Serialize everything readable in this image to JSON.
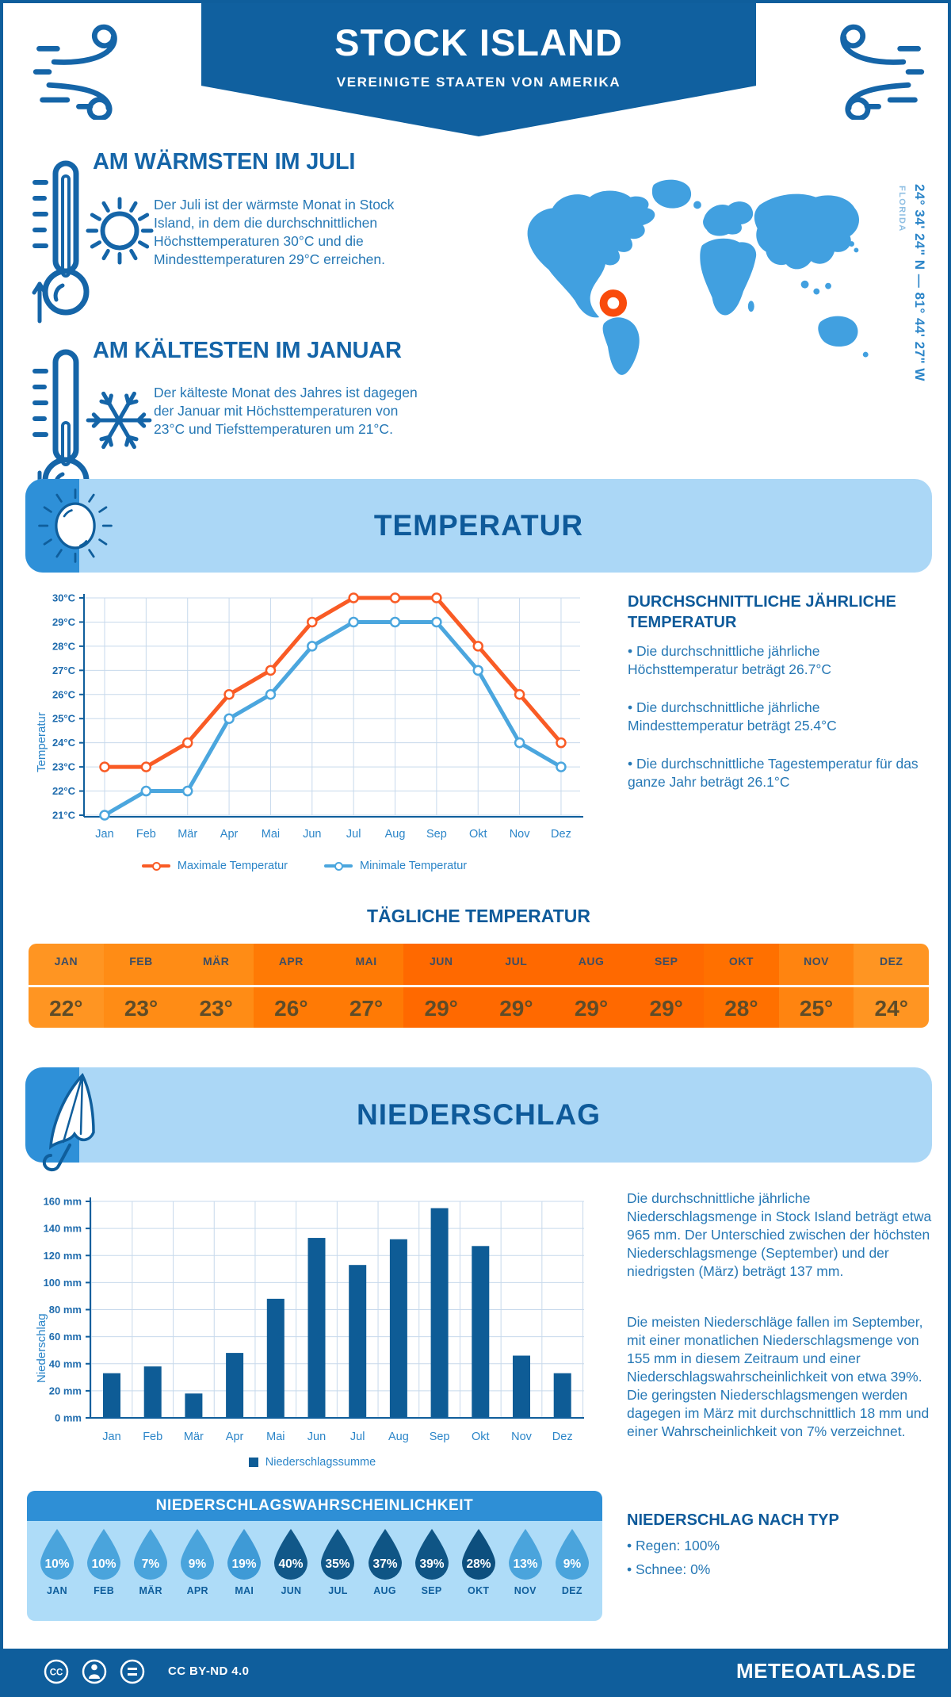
{
  "header": {
    "title": "STOCK ISLAND",
    "subtitle": "VEREINIGTE STAATEN VON AMERIKA"
  },
  "highlights": {
    "warm": {
      "title": "AM WÄRMSTEN IM JULI",
      "text": "Der Juli ist der wärmste Monat in Stock Island, in dem die durchschnittlichen Höchsttemperaturen 30°C und die Mindesttemperaturen 29°C erreichen."
    },
    "cold": {
      "title": "AM KÄLTESTEN IM JANUAR",
      "text": "Der kälteste Monat des Jahres ist dagegen der Januar mit Höchsttemperaturen von 23°C und Tiefsttemperaturen um 21°C."
    }
  },
  "map": {
    "coordinates": "24° 34' 24\" N — 81° 44' 27\" W",
    "region": "FLORIDA"
  },
  "temperature_section": {
    "title": "TEMPERATUR",
    "avg_heading": "DURCHSCHNITTLICHE JÄHRLICHE TEMPERATUR",
    "bullets": [
      "• Die durchschnittliche jährliche Höchsttemperatur beträgt 26.7°C",
      "• Die durchschnittliche jährliche Mindesttemperatur beträgt 25.4°C",
      "• Die durchschnittliche Tagestemperatur für das ganze Jahr beträgt 26.1°C"
    ]
  },
  "daily_table": {
    "title": "TÄGLICHE TEMPERATUR",
    "months": [
      "JAN",
      "FEB",
      "MÄR",
      "APR",
      "MAI",
      "JUN",
      "JUL",
      "AUG",
      "SEP",
      "OKT",
      "NOV",
      "DEZ"
    ],
    "values": [
      "22°",
      "23°",
      "23°",
      "26°",
      "27°",
      "29°",
      "29°",
      "29°",
      "29°",
      "28°",
      "25°",
      "24°"
    ],
    "cell_colors": [
      "#FF9522",
      "#FF8C15",
      "#FF8C15",
      "#FF7A05",
      "#FF7A05",
      "#FF6900",
      "#FF6900",
      "#FF6900",
      "#FF6900",
      "#FF7000",
      "#FF8410",
      "#FF9522"
    ]
  },
  "precipitation_section": {
    "title": "NIEDERSCHLAG",
    "para1": "Die durchschnittliche jährliche Niederschlagsmenge in Stock Island beträgt etwa 965 mm. Der Unterschied zwischen der höchsten Niederschlagsmenge (September) und der niedrigsten (März) beträgt 137 mm.",
    "para2": "Die meisten Niederschläge fallen im September, mit einer monatlichen Niederschlagsmenge von 155 mm in diesem Zeitraum und einer Niederschlagswahrscheinlichkeit von etwa 39%. Die geringsten Niederschlagsmengen werden dagegen im März mit durchschnittlich 18 mm und einer Wahrscheinlichkeit von 7% verzeichnet.",
    "type_heading": "NIEDERSCHLAG NACH TYP",
    "types": [
      "• Regen: 100%",
      "• Schnee: 0%"
    ]
  },
  "probability": {
    "title": "NIEDERSCHLAGSWAHRSCHEINLICHKEIT",
    "months": [
      "JAN",
      "FEB",
      "MÄR",
      "APR",
      "MAI",
      "JUN",
      "JUL",
      "AUG",
      "SEP",
      "OKT",
      "NOV",
      "DEZ"
    ],
    "values": [
      "10%",
      "10%",
      "7%",
      "9%",
      "19%",
      "40%",
      "35%",
      "37%",
      "39%",
      "28%",
      "13%",
      "9%"
    ],
    "drop_colors": [
      "#4AA4DC",
      "#4AA4DC",
      "#4AA4DC",
      "#4AA4DC",
      "#3E9AD6",
      "#115889",
      "#115889",
      "#0F5585",
      "#0F5585",
      "#0D4F7E",
      "#4AA4DC",
      "#4AA4DC"
    ]
  },
  "footer": {
    "license": "CC BY-ND 4.0",
    "site": "METEOATLAS.DE"
  },
  "colors": {
    "brand_blue": "#10609F",
    "heading_blue": "#1565A8",
    "body_blue": "#2678B5",
    "panel_light": "#ABD7F6",
    "panel_corner": "#2E90D8",
    "map_blue": "#41A0E0",
    "marker_orange": "#F94B0C",
    "grid": "#C7D9EC",
    "axis": "#0F5E9C",
    "prob_header": "#2E8FD6"
  },
  "chart_data": [
    {
      "type": "line",
      "categories": [
        "Jan",
        "Feb",
        "Mär",
        "Apr",
        "Mai",
        "Jun",
        "Jul",
        "Aug",
        "Sep",
        "Okt",
        "Nov",
        "Dez"
      ],
      "series": [
        {
          "name": "Maximale Temperatur",
          "color": "#F95B25",
          "values": [
            23,
            23,
            24,
            26,
            27,
            29,
            30,
            30,
            30,
            28,
            26,
            24
          ]
        },
        {
          "name": "Minimale Temperatur",
          "color": "#4BA6DE",
          "values": [
            21,
            22,
            22,
            25,
            26,
            28,
            29,
            29,
            29,
            27,
            24,
            23
          ]
        }
      ],
      "ylabel": "Temperatur",
      "ylim": [
        21,
        30
      ],
      "ytick_suffix": "°C",
      "grid": true,
      "legend_position": "bottom"
    },
    {
      "type": "bar",
      "categories": [
        "Jan",
        "Feb",
        "Mär",
        "Apr",
        "Mai",
        "Jun",
        "Jul",
        "Aug",
        "Sep",
        "Okt",
        "Nov",
        "Dez"
      ],
      "values": [
        33,
        38,
        18,
        48,
        88,
        133,
        113,
        132,
        155,
        127,
        46,
        33
      ],
      "bar_color": "#0E5C96",
      "ylabel": "Niederschlag",
      "ylim": [
        0,
        160
      ],
      "ytick_step": 20,
      "ytick_suffix": " mm",
      "grid": true,
      "legend_label": "Niederschlagssumme"
    }
  ]
}
